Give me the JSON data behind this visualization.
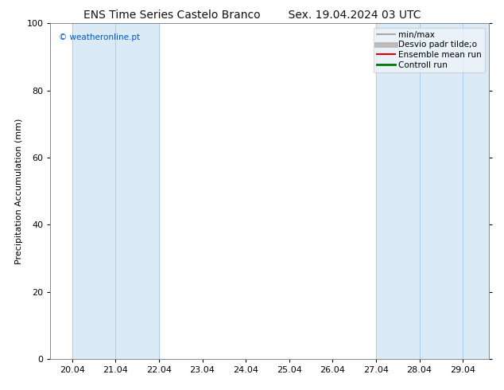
{
  "title": "ENS Time Series Castelo Branco",
  "title2": "Sex. 19.04.2024 03 UTC",
  "ylabel": "Precipitation Accumulation (mm)",
  "ylim": [
    0,
    100
  ],
  "yticks": [
    0,
    20,
    40,
    60,
    80,
    100
  ],
  "x_tick_labels": [
    "20.04",
    "21.04",
    "22.04",
    "23.04",
    "24.04",
    "25.04",
    "26.04",
    "27.04",
    "28.04",
    "29.04"
  ],
  "x_tick_positions": [
    20,
    21,
    22,
    23,
    24,
    25,
    26,
    27,
    28,
    29
  ],
  "xlim": [
    19.5,
    29.6
  ],
  "watermark": "© weatheronline.pt",
  "watermark_color": "#0055cc",
  "bg_color": "#ffffff",
  "plot_bg_color": "#ffffff",
  "shaded_bands": [
    [
      20.0,
      21.0
    ],
    [
      21.0,
      22.0
    ],
    [
      27.0,
      28.0
    ],
    [
      28.0,
      29.0
    ],
    [
      29.0,
      29.7
    ]
  ],
  "shade_color": "#daeaf7",
  "shade_line_color": "#aaccee",
  "legend_entries": [
    {
      "label": "min/max",
      "color": "#999999",
      "lw": 1.2
    },
    {
      "label": "Desvio padr tilde;o",
      "color": "#bbbbbb",
      "lw": 5
    },
    {
      "label": "Ensemble mean run",
      "color": "#dd0000",
      "lw": 1.5
    },
    {
      "label": "Controll run",
      "color": "#007700",
      "lw": 2
    }
  ],
  "font_size_title": 10,
  "font_size_axis": 8,
  "font_size_tick": 8,
  "font_size_legend": 7.5,
  "font_size_watermark": 7.5
}
